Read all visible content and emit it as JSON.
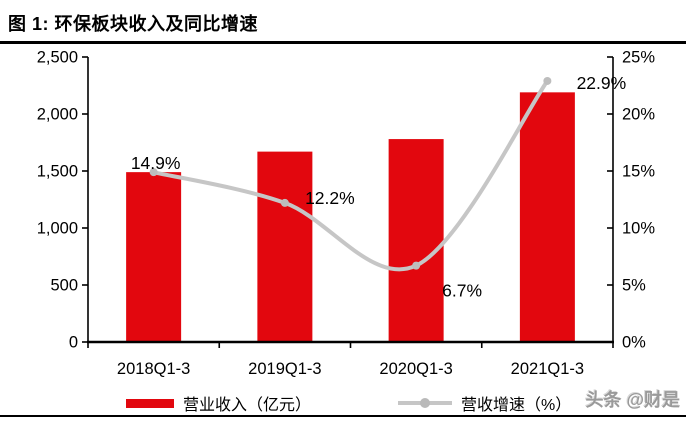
{
  "header": {
    "title": "图 1: 环保板块收入及同比增速"
  },
  "watermark": "头条 @财是",
  "legend": {
    "position": "bottom",
    "items": [
      {
        "label": "营业收入（亿元）",
        "type": "bar",
        "color": "#e2070e"
      },
      {
        "label": "营收增速（%）",
        "type": "line",
        "color": "#c6c6c6"
      }
    ]
  },
  "colors": {
    "bar_red": "#e2070e",
    "line_gray": "#c6c6c6",
    "marker_gray": "#bdbdbd",
    "axis_black": "#000000",
    "background": "#ffffff"
  },
  "chart_data": {
    "type": "bar+line",
    "title": "环保板块收入及同比增速",
    "categories": [
      "2018Q1-3",
      "2019Q1-3",
      "2020Q1-3",
      "2021Q1-3"
    ],
    "series": [
      {
        "name": "营业收入（亿元）",
        "type": "bar",
        "axis": "left",
        "values": [
          1490,
          1670,
          1780,
          2190
        ],
        "values_estimated_from_axis": true,
        "color": "#e2070e"
      },
      {
        "name": "营收增速（%）",
        "type": "line",
        "axis": "right",
        "values": [
          14.9,
          12.2,
          6.7,
          22.9
        ],
        "labels": [
          "14.9%",
          "12.2%",
          "6.7%",
          "22.9%"
        ],
        "color": "#c6c6c6",
        "marker_color": "#bdbdbd",
        "smooth": true
      }
    ],
    "y_left": {
      "min": 0,
      "max": 2500,
      "step": 500,
      "tick_labels": [
        "0",
        "500",
        "1,000",
        "1,500",
        "2,000",
        "2,500"
      ]
    },
    "y_right": {
      "min": 0,
      "max": 25,
      "step": 5,
      "tick_labels": [
        "0%",
        "5%",
        "10%",
        "15%",
        "20%",
        "25%"
      ]
    },
    "grid": false,
    "legend_position": "bottom"
  }
}
